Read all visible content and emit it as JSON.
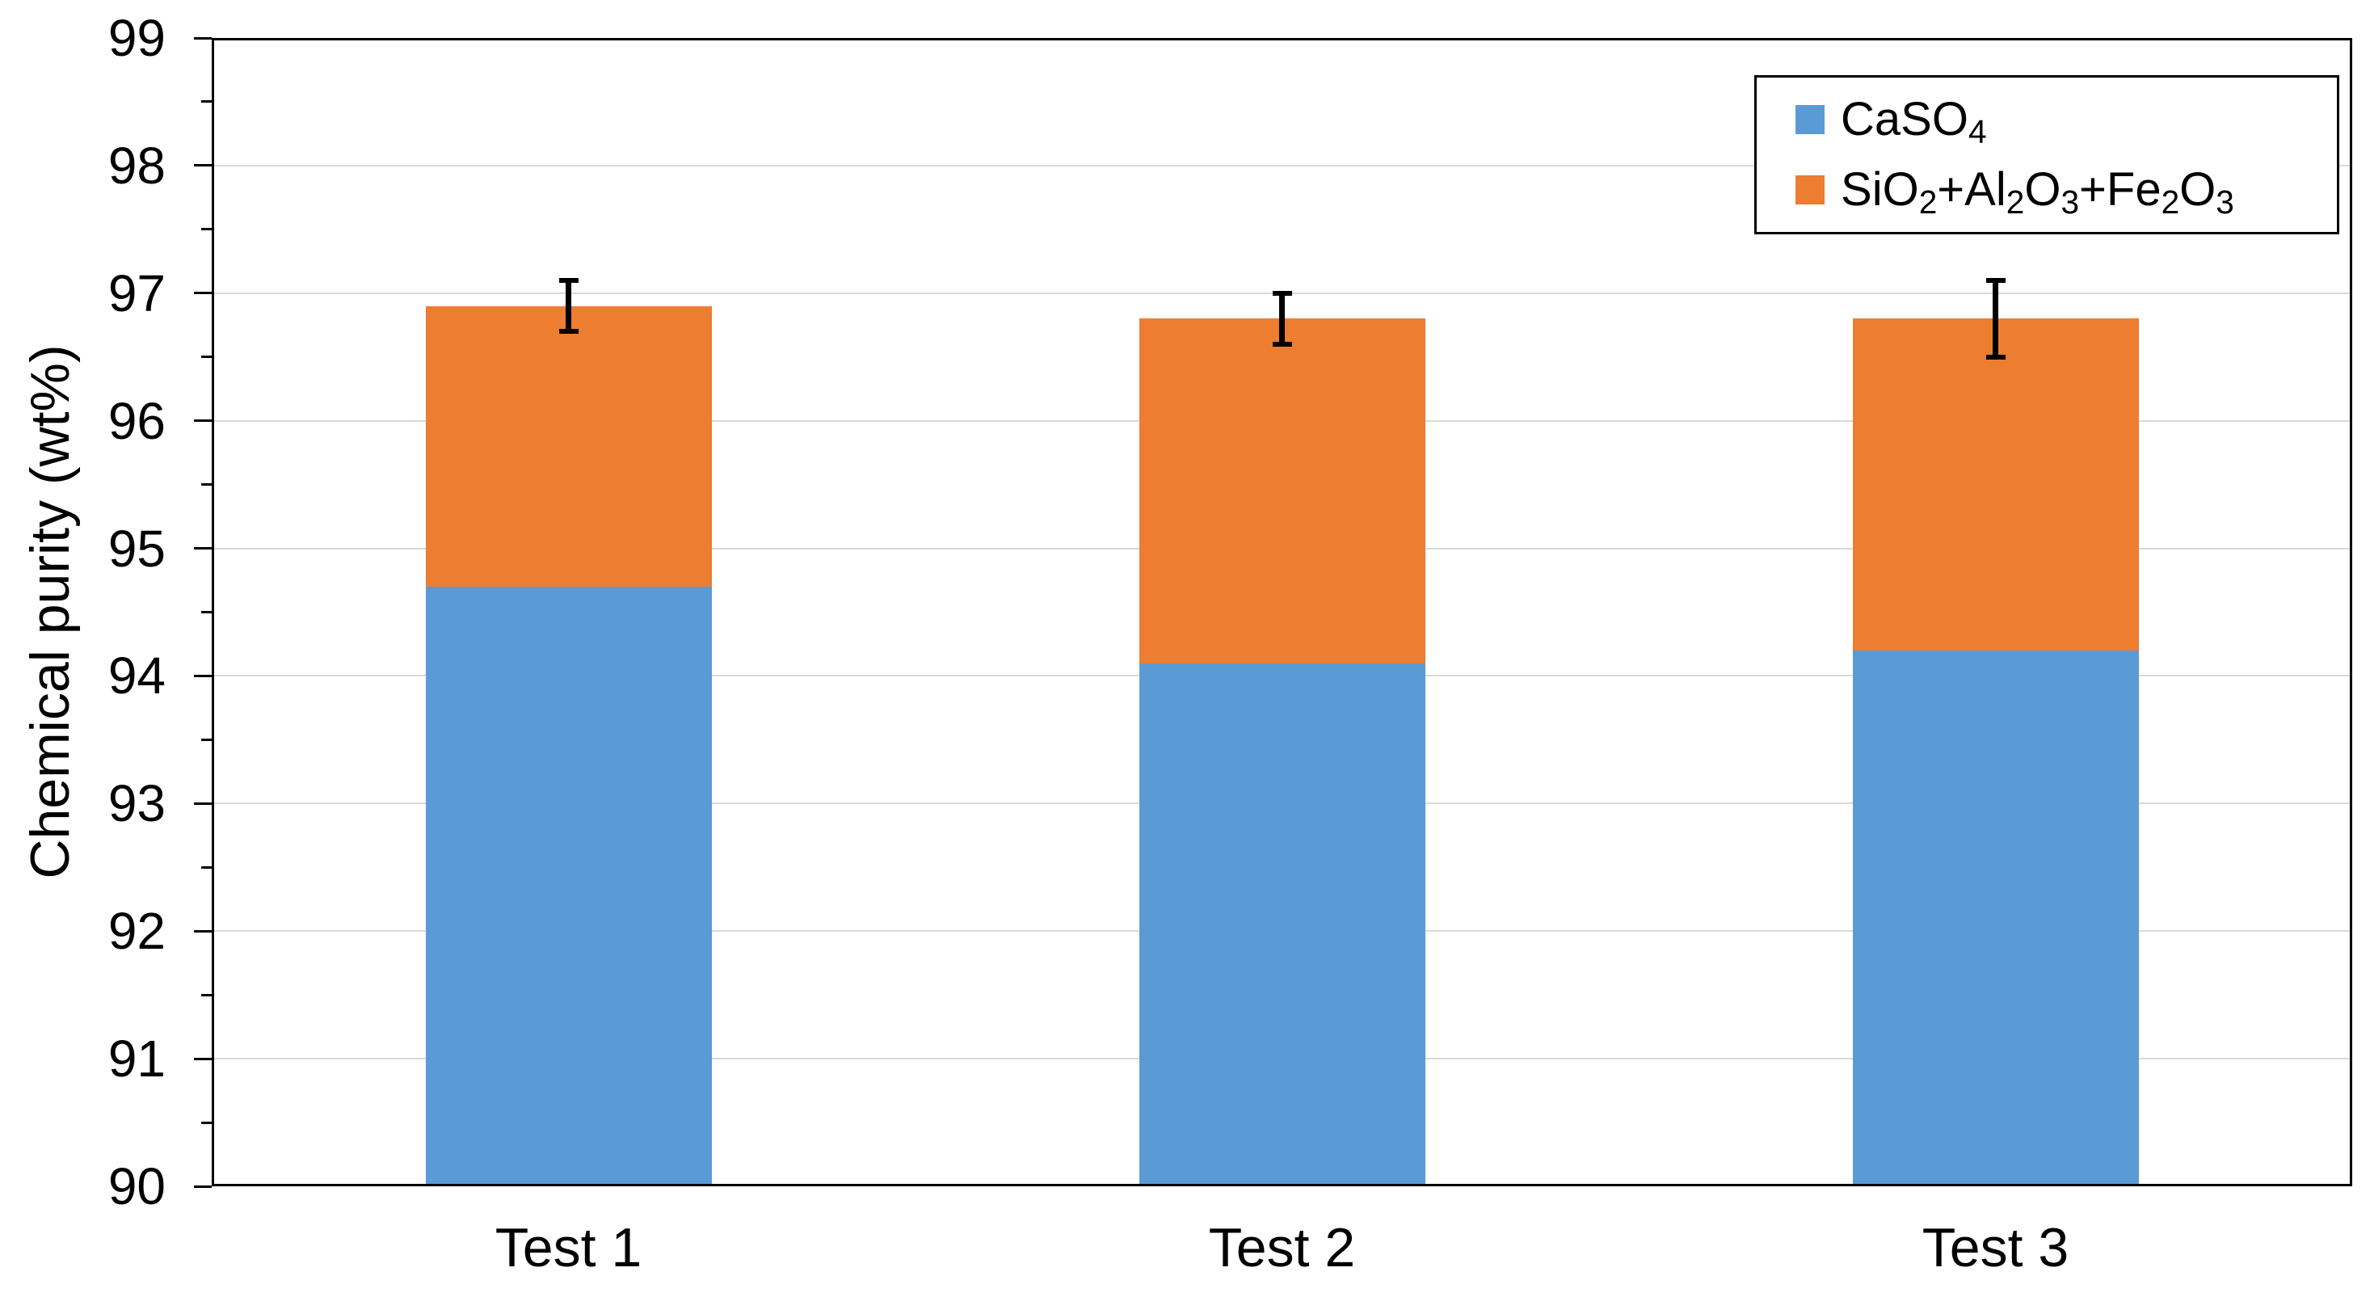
{
  "chart_data": {
    "type": "bar",
    "subtype": "stacked-column",
    "title": "",
    "categories": [
      "Test 1",
      "Test 2",
      "Test 3"
    ],
    "series": [
      {
        "name": "CaSO₄",
        "color": "#5B9BD5",
        "values": [
          94.7,
          94.1,
          94.2
        ]
      },
      {
        "name": "SiO₂+Al₂O₃+Fe₂O₃",
        "color": "#ED7D31",
        "values": [
          2.2,
          2.7,
          2.6
        ]
      }
    ],
    "stack_totals": [
      96.9,
      96.8,
      96.8
    ],
    "error_bars": {
      "applies_to": "stack-total",
      "values": [
        0.2,
        0.2,
        0.3
      ],
      "color": "#000000"
    },
    "xlabel": "",
    "ylabel": "Chemical purity (wt%)",
    "ylim": [
      90,
      99
    ],
    "ytick_step": 1,
    "yminor_step": 0.5,
    "y_tick_labels": [
      "90",
      "91",
      "92",
      "93",
      "94",
      "95",
      "96",
      "97",
      "98",
      "99"
    ],
    "grid": "horizontal-major",
    "gridline_color": "#D9D9D9",
    "axis_color": "#000000",
    "background_color": "#FFFFFF",
    "legend_position": "top-right-inside",
    "legend_border_color": "#000000"
  }
}
